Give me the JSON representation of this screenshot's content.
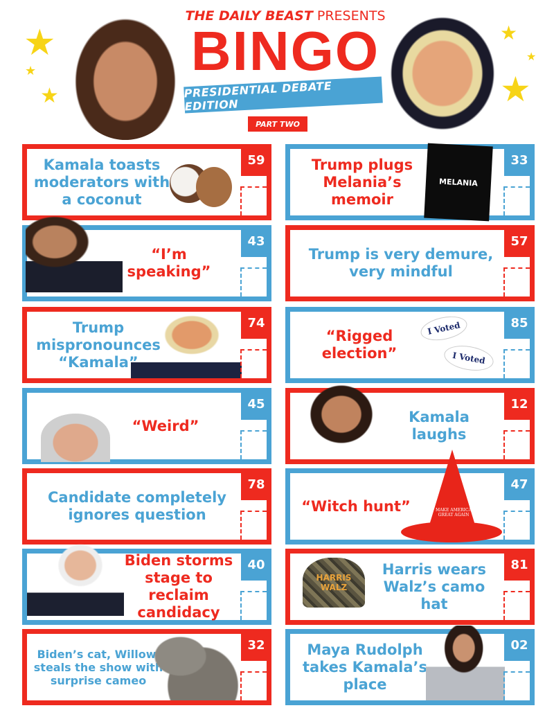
{
  "header": {
    "brand": "THE DAILY BEAST",
    "presents": "PRESENTS",
    "title": "BINGO",
    "subtitle": "PRESIDENTIAL DEBATE EDITION",
    "part": "PART TWO"
  },
  "colors": {
    "red": "#ee2a1f",
    "blue": "#4aa3d4",
    "star": "#f7d417"
  },
  "cards": {
    "left": [
      {
        "text": "Kamala toasts moderators with a coconut",
        "number": "59",
        "border": "red",
        "text_color": "blue",
        "image": "coconut"
      },
      {
        "text": "“I’m speaking”",
        "number": "43",
        "border": "blue",
        "text_color": "red",
        "image": "kamala-hand-raised"
      },
      {
        "text": "Trump mispronounces “Kamala”",
        "number": "74",
        "border": "red",
        "text_color": "blue",
        "image": "trump-pointing"
      },
      {
        "text": "“Weird”",
        "number": "45",
        "border": "blue",
        "text_color": "red",
        "image": "walz-face"
      },
      {
        "text": "Candidate completely ignores question",
        "number": "78",
        "border": "red",
        "text_color": "blue",
        "image": ""
      },
      {
        "text": "Biden storms stage to reclaim candidacy",
        "number": "40",
        "border": "blue",
        "text_color": "red",
        "image": "biden-shouting"
      },
      {
        "text": "Biden’s cat, Willow, steals the show with surprise cameo",
        "number": "32",
        "border": "red",
        "text_color": "blue",
        "image": "cat"
      }
    ],
    "right": [
      {
        "text": "Trump plugs Melania’s memoir",
        "number": "33",
        "border": "blue",
        "text_color": "red",
        "image": "book",
        "image_text": "MELANIA"
      },
      {
        "text": "Trump is very demure, very mindful",
        "number": "57",
        "border": "red",
        "text_color": "blue",
        "image": ""
      },
      {
        "text": "“Rigged election”",
        "number": "85",
        "border": "blue",
        "text_color": "red",
        "image": "i-voted-stickers",
        "image_text": "I Voted"
      },
      {
        "text": "Kamala laughs",
        "number": "12",
        "border": "red",
        "text_color": "blue",
        "image": "kamala-laughing"
      },
      {
        "text": "“Witch hunt”",
        "number": "47",
        "border": "blue",
        "text_color": "red",
        "image": "maga-witch-hat",
        "image_text": "MAKE AMERICA GREAT AGAIN"
      },
      {
        "text": "Harris wears Walz’s camo hat",
        "number": "81",
        "border": "red",
        "text_color": "blue",
        "image": "camo-cap",
        "image_text": "HARRIS WALZ"
      },
      {
        "text": "Maya Rudolph takes Kamala’s place",
        "number": "02",
        "border": "blue",
        "text_color": "blue",
        "image": "maya-rudolph"
      }
    ]
  }
}
